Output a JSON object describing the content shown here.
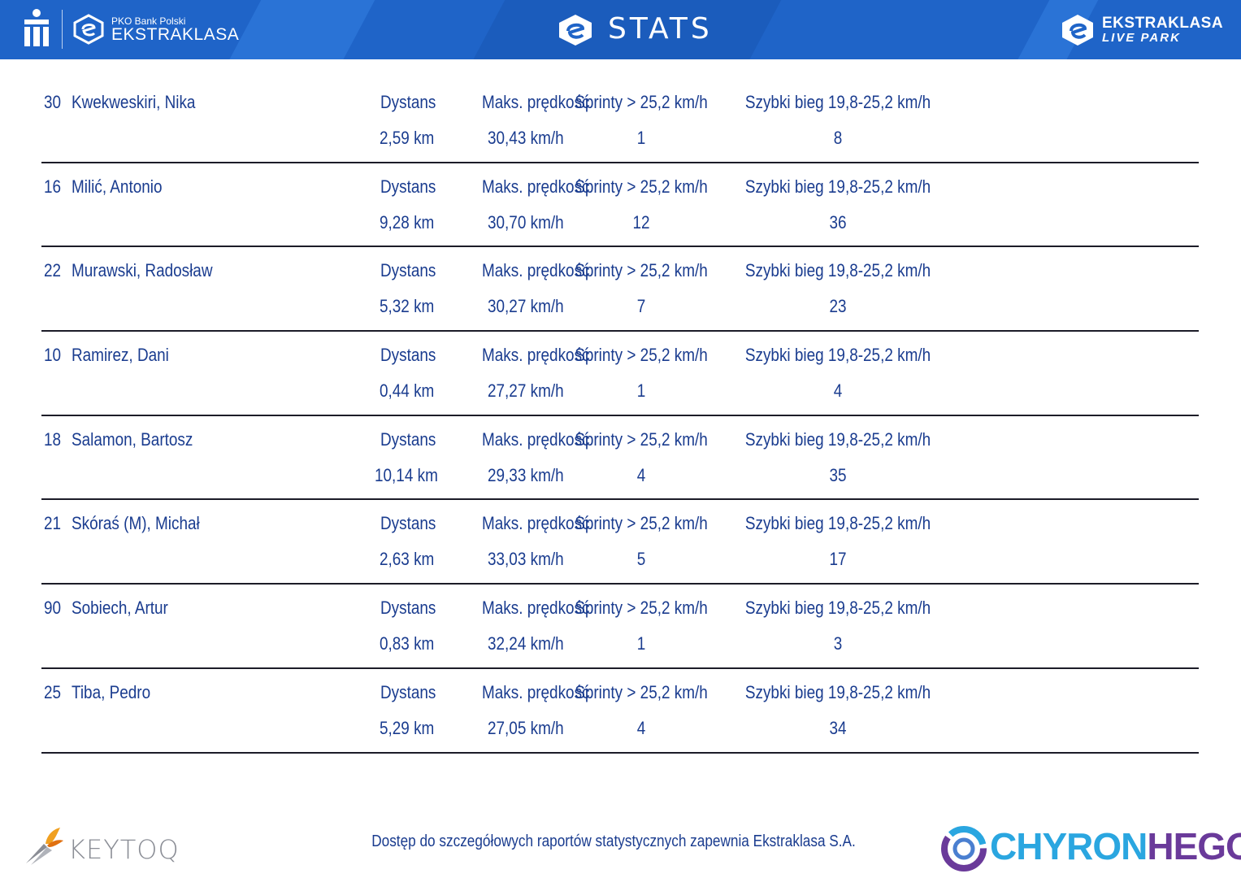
{
  "header": {
    "bank_small": "PKO Bank Polski",
    "league": "EKSTRAKLASA",
    "title": "STATS",
    "livepark_top": "EKSTRAKLASA",
    "livepark_bottom": "LIVE PARK",
    "bg_color": "#1f64c8"
  },
  "labels": {
    "distance": "Dystans",
    "max_speed": "Maks. prędkość",
    "sprints": "Sprinty > 25,2 km/h",
    "fast_run": "Szybki bieg 19,8-25,2 km/h"
  },
  "players": [
    {
      "number": "30",
      "name": "Kwekweskiri, Nika",
      "distance": "2,59 km",
      "max_speed": "30,43 km/h",
      "sprints": "1",
      "fast_run": "8"
    },
    {
      "number": "16",
      "name": "Milić, Antonio",
      "distance": "9,28 km",
      "max_speed": "30,70 km/h",
      "sprints": "12",
      "fast_run": "36"
    },
    {
      "number": "22",
      "name": "Murawski, Radosław",
      "distance": "5,32 km",
      "max_speed": "30,27 km/h",
      "sprints": "7",
      "fast_run": "23"
    },
    {
      "number": "10",
      "name": "Ramirez, Dani",
      "distance": "0,44 km",
      "max_speed": "27,27 km/h",
      "sprints": "1",
      "fast_run": "4"
    },
    {
      "number": "18",
      "name": "Salamon, Bartosz",
      "distance": "10,14 km",
      "max_speed": "29,33 km/h",
      "sprints": "4",
      "fast_run": "35"
    },
    {
      "number": "21",
      "name": "Skóraś (M), Michał",
      "distance": "2,63 km",
      "max_speed": "33,03 km/h",
      "sprints": "5",
      "fast_run": "17"
    },
    {
      "number": "90",
      "name": "Sobiech, Artur",
      "distance": "0,83 km",
      "max_speed": "32,24 km/h",
      "sprints": "1",
      "fast_run": "3"
    },
    {
      "number": "25",
      "name": "Tiba, Pedro",
      "distance": "5,29 km",
      "max_speed": "27,05 km/h",
      "sprints": "4",
      "fast_run": "34"
    }
  ],
  "footer": {
    "keytoq": "KEYTOQ",
    "note": "Dostęp do szczegółowych raportów statystycznych zapewnia Ekstraklasa S.A.",
    "chyron_a": "CHYRON",
    "chyron_b": "HEGO"
  }
}
